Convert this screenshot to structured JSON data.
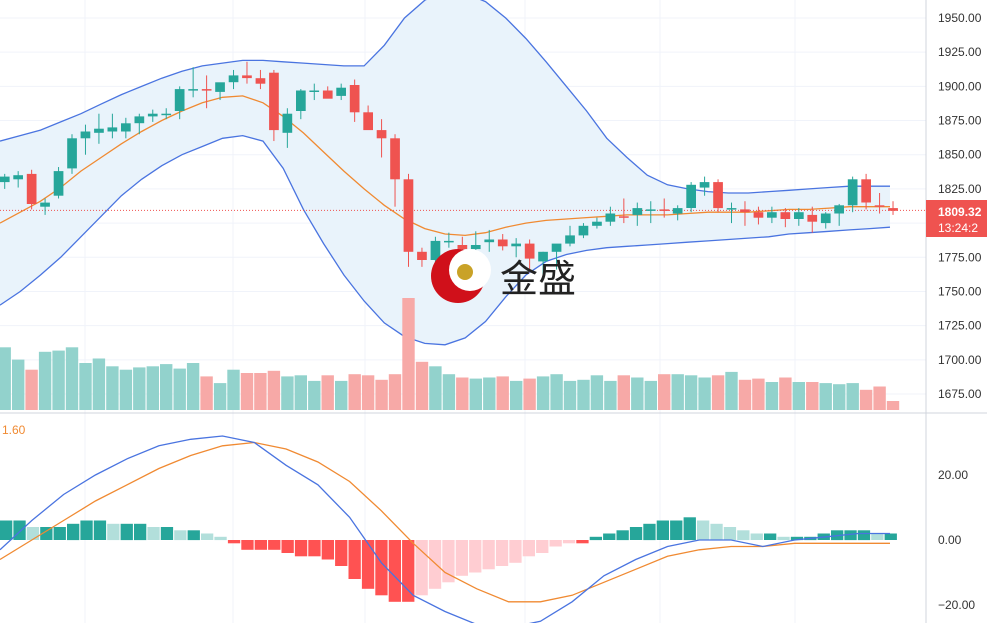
{
  "colors": {
    "up": "#26a69a",
    "down": "#ef5350",
    "vol_up": "#92d2cc",
    "vol_down": "#f7a9a7",
    "hist_up_strong": "#26a69a",
    "hist_up_weak": "#b2dfdb",
    "hist_down_strong": "#ff5252",
    "hist_down_weak": "#ffcdd2",
    "bb_line": "#4a74e0",
    "bb_fill": "#e9f3fb",
    "ma_line": "#f08a32",
    "macd_line": "#4a74e0",
    "signal_line": "#f08a32",
    "price_tag": "#ef5350",
    "grid": "#f0f3fa",
    "logo_red": "#d0101a",
    "logo_gold": "#c9a227"
  },
  "price_tag": {
    "price": "1809.32",
    "countdown": "13:24:2"
  },
  "macd_label": "1.60",
  "logo_text": "金盛",
  "chart_data": [
    {
      "type": "candlestick",
      "panel": "price",
      "y_ticks": [
        "1950.00",
        "1925.00",
        "1900.00",
        "1875.00",
        "1850.00",
        "1825.00",
        "1800.00",
        "1775.00",
        "1750.00",
        "1725.00",
        "1700.00",
        "1675.00"
      ],
      "ylim": [
        1665,
        1960
      ],
      "current_price": 1809.32,
      "candles": [
        [
          1830,
          1836,
          1825,
          1834
        ],
        [
          1832,
          1838,
          1826,
          1835
        ],
        [
          1836,
          1839,
          1810,
          1814
        ],
        [
          1812,
          1818,
          1806,
          1815
        ],
        [
          1820,
          1841,
          1818,
          1838
        ],
        [
          1840,
          1865,
          1836,
          1862
        ],
        [
          1862,
          1872,
          1850,
          1867
        ],
        [
          1866,
          1880,
          1858,
          1869
        ],
        [
          1867,
          1880,
          1862,
          1870
        ],
        [
          1867,
          1877,
          1862,
          1873
        ],
        [
          1873,
          1880,
          1865,
          1878
        ],
        [
          1878,
          1883,
          1874,
          1880
        ],
        [
          1880,
          1884,
          1876,
          1880
        ],
        [
          1882,
          1900,
          1876,
          1898
        ],
        [
          1898,
          1914,
          1892,
          1898
        ],
        [
          1898,
          1908,
          1884,
          1897
        ],
        [
          1896,
          1902,
          1890,
          1903
        ],
        [
          1903,
          1912,
          1898,
          1908
        ],
        [
          1908,
          1918,
          1902,
          1906
        ],
        [
          1906,
          1912,
          1898,
          1902
        ],
        [
          1910,
          1912,
          1860,
          1868
        ],
        [
          1866,
          1884,
          1855,
          1880
        ],
        [
          1882,
          1898,
          1876,
          1897
        ],
        [
          1897,
          1902,
          1890,
          1897
        ],
        [
          1897,
          1900,
          1892,
          1891
        ],
        [
          1893,
          1902,
          1890,
          1899
        ],
        [
          1901,
          1905,
          1874,
          1881
        ],
        [
          1881,
          1886,
          1870,
          1868
        ],
        [
          1868,
          1876,
          1848,
          1862
        ],
        [
          1862,
          1865,
          1812,
          1832
        ],
        [
          1832,
          1836,
          1768,
          1779
        ],
        [
          1779,
          1782,
          1768,
          1773
        ],
        [
          1773,
          1790,
          1768,
          1787
        ],
        [
          1787,
          1793,
          1782,
          1787
        ],
        [
          1784,
          1790,
          1778,
          1781
        ],
        [
          1781,
          1794,
          1776,
          1784
        ],
        [
          1786,
          1795,
          1779,
          1788
        ],
        [
          1788,
          1792,
          1780,
          1783
        ],
        [
          1783,
          1789,
          1775,
          1785
        ],
        [
          1785,
          1788,
          1764,
          1774
        ],
        [
          1772,
          1779,
          1762,
          1779
        ],
        [
          1779,
          1783,
          1766,
          1785
        ],
        [
          1785,
          1798,
          1783,
          1791
        ],
        [
          1791,
          1800,
          1789,
          1798
        ],
        [
          1798,
          1804,
          1796,
          1801
        ],
        [
          1801,
          1812,
          1798,
          1807
        ],
        [
          1805,
          1818,
          1800,
          1804
        ],
        [
          1806,
          1815,
          1798,
          1811
        ],
        [
          1809,
          1816,
          1800,
          1810
        ],
        [
          1810,
          1818,
          1804,
          1809
        ],
        [
          1807,
          1813,
          1802,
          1811
        ],
        [
          1811,
          1830,
          1808,
          1828
        ],
        [
          1826,
          1834,
          1820,
          1830
        ],
        [
          1830,
          1832,
          1808,
          1811
        ],
        [
          1810,
          1815,
          1800,
          1811
        ],
        [
          1810,
          1816,
          1798,
          1808
        ],
        [
          1808,
          1812,
          1799,
          1804
        ],
        [
          1804,
          1812,
          1800,
          1808
        ],
        [
          1808,
          1811,
          1797,
          1803
        ],
        [
          1803,
          1811,
          1798,
          1808
        ],
        [
          1806,
          1812,
          1793,
          1801
        ],
        [
          1800,
          1808,
          1796,
          1807
        ],
        [
          1807,
          1814,
          1798,
          1813
        ],
        [
          1813,
          1834,
          1808,
          1832
        ],
        [
          1832,
          1836,
          1810,
          1815
        ],
        [
          1813,
          1822,
          1807,
          1812
        ],
        [
          1811,
          1816,
          1806,
          1809
        ]
      ]
    },
    {
      "type": "line",
      "panel": "price",
      "series": [
        {
          "role": "bb_upper",
          "values": [
            1860,
            1864,
            1868,
            1874,
            1880,
            1887,
            1894,
            1900,
            1906,
            1911,
            1915,
            1917,
            1919,
            1919,
            1918,
            1917,
            1916,
            1915,
            1915,
            1930,
            1950,
            1963,
            1970,
            1968,
            1962,
            1950,
            1935,
            1918,
            1900,
            1882,
            1862,
            1848,
            1835,
            1828,
            1825,
            1823,
            1822,
            1822,
            1823,
            1824,
            1825,
            1826,
            1827,
            1827,
            1827
          ]
        },
        {
          "role": "bb_middle",
          "values": [
            1800,
            1808,
            1816,
            1826,
            1838,
            1848,
            1858,
            1867,
            1875,
            1882,
            1888,
            1892,
            1893,
            1888,
            1878,
            1866,
            1852,
            1838,
            1825,
            1813,
            1803,
            1796,
            1792,
            1791,
            1793,
            1797,
            1800,
            1802,
            1803,
            1804,
            1805,
            1806,
            1806,
            1806,
            1807,
            1808,
            1808,
            1808,
            1809,
            1810,
            1810,
            1811,
            1812,
            1812,
            1812
          ]
        },
        {
          "role": "bb_lower",
          "values": [
            1740,
            1750,
            1762,
            1775,
            1790,
            1805,
            1820,
            1832,
            1842,
            1850,
            1856,
            1862,
            1864,
            1860,
            1840,
            1810,
            1785,
            1762,
            1743,
            1727,
            1717,
            1712,
            1711,
            1716,
            1728,
            1746,
            1762,
            1772,
            1777,
            1780,
            1782,
            1783,
            1784,
            1785,
            1786,
            1787,
            1788,
            1789,
            1790,
            1792,
            1793,
            1794,
            1795,
            1796,
            1797
          ]
        }
      ]
    },
    {
      "type": "bar",
      "panel": "volume",
      "values": [
        0.56,
        0.45,
        0.36,
        0.52,
        0.53,
        0.56,
        0.42,
        0.46,
        0.39,
        0.36,
        0.38,
        0.39,
        0.41,
        0.37,
        0.42,
        0.3,
        0.24,
        0.36,
        0.33,
        0.33,
        0.35,
        0.3,
        0.31,
        0.26,
        0.31,
        0.26,
        0.32,
        0.31,
        0.27,
        0.32,
        1.0,
        0.43,
        0.39,
        0.32,
        0.29,
        0.28,
        0.29,
        0.3,
        0.26,
        0.28,
        0.3,
        0.32,
        0.26,
        0.27,
        0.31,
        0.26,
        0.31,
        0.29,
        0.26,
        0.32,
        0.32,
        0.31,
        0.29,
        0.31,
        0.34,
        0.27,
        0.28,
        0.25,
        0.29,
        0.25,
        0.25,
        0.24,
        0.23,
        0.24,
        0.18,
        0.21,
        0.08
      ]
    },
    {
      "type": "line",
      "panel": "macd",
      "y_ticks": [
        "20.00",
        "0.00",
        "−20.00"
      ],
      "ylim": [
        -25,
        41
      ],
      "series": [
        {
          "role": "macd",
          "values": [
            -3,
            6,
            14,
            20,
            25,
            29,
            31,
            32,
            30,
            23,
            17,
            7,
            -7,
            -17,
            -22,
            -26,
            -27,
            -25,
            -19,
            -11,
            -6,
            -2,
            0,
            0,
            -2,
            0,
            1,
            2,
            2
          ]
        },
        {
          "role": "signal",
          "values": [
            -6,
            0,
            6,
            12,
            17,
            22,
            26,
            29,
            30,
            28,
            24,
            18,
            9,
            -1,
            -10,
            -15,
            -19,
            -19,
            -17,
            -13,
            -9,
            -5,
            -3,
            -2,
            -2,
            -1,
            -1,
            -1,
            -1
          ]
        }
      ],
      "histogram": [
        6,
        6,
        4,
        4,
        4,
        5,
        6,
        6,
        5,
        5,
        5,
        4,
        4,
        3,
        3,
        2,
        1,
        -1,
        -3,
        -3,
        -3,
        -4,
        -5,
        -5,
        -6,
        -8,
        -12,
        -15,
        -17,
        -19,
        -19,
        -17,
        -15,
        -13,
        -11,
        -10,
        -9,
        -8,
        -7,
        -5,
        -4,
        -2,
        -1,
        -1,
        1,
        2,
        3,
        4,
        5,
        6,
        6,
        7,
        6,
        5,
        4,
        3,
        2,
        2,
        1,
        1,
        1,
        2,
        3,
        3,
        3,
        2,
        2
      ]
    }
  ]
}
